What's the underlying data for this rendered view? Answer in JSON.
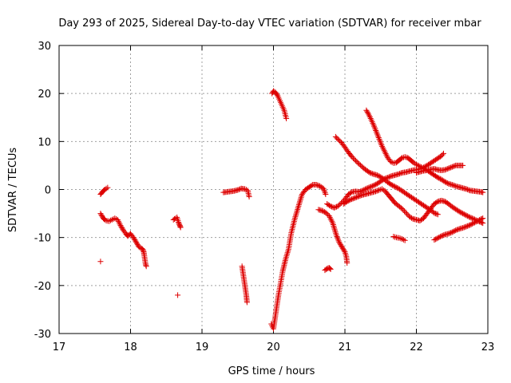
{
  "chart_data": {
    "type": "scatter",
    "title": "Day 293 of 2025, Sidereal Day-to-day VTEC variation (SDTVAR) for receiver mbar",
    "xlabel": "GPS time / hours",
    "ylabel": "SDTVAR / TECUs",
    "xlim": [
      17,
      23
    ],
    "ylim": [
      -30,
      30
    ],
    "xticks": [
      "17",
      "18",
      "19",
      "20",
      "21",
      "22",
      "23"
    ],
    "yticks": [
      "-30",
      "-20",
      "-10",
      "0",
      "10",
      "20",
      "30"
    ],
    "grid": true,
    "marker": "+",
    "color": "#dd0000",
    "series": [
      {
        "name": "seg01",
        "points": [
          [
            17.58,
            -1.0
          ],
          [
            17.6,
            -0.6
          ],
          [
            17.62,
            -0.3
          ],
          [
            17.64,
            0.0
          ],
          [
            17.66,
            0.2
          ],
          [
            17.68,
            0.4
          ]
        ]
      },
      {
        "name": "seg02",
        "points": [
          [
            17.58,
            -5.0
          ],
          [
            17.6,
            -5.5
          ],
          [
            17.62,
            -6.0
          ],
          [
            17.64,
            -6.3
          ],
          [
            17.66,
            -6.5
          ],
          [
            17.7,
            -6.6
          ],
          [
            17.74,
            -6.3
          ],
          [
            17.78,
            -6.0
          ],
          [
            17.82,
            -6.3
          ],
          [
            17.86,
            -7.5
          ],
          [
            17.9,
            -8.5
          ],
          [
            17.94,
            -9.3
          ],
          [
            17.96,
            -9.7
          ],
          [
            18.0,
            -9.2
          ],
          [
            18.04,
            -10.0
          ],
          [
            18.08,
            -11.0
          ],
          [
            18.12,
            -12.0
          ],
          [
            18.16,
            -12.3
          ],
          [
            18.18,
            -12.7
          ],
          [
            18.19,
            -13.5
          ],
          [
            18.2,
            -14.5
          ],
          [
            18.21,
            -15.5
          ],
          [
            18.22,
            -16.0
          ]
        ]
      },
      {
        "name": "seg03",
        "points": [
          [
            17.58,
            -15.0
          ]
        ]
      },
      {
        "name": "seg04",
        "points": [
          [
            18.6,
            -6.3
          ],
          [
            18.63,
            -6.0
          ],
          [
            18.65,
            -5.8
          ],
          [
            18.67,
            -6.8
          ],
          [
            18.69,
            -7.5
          ],
          [
            18.7,
            -7.9
          ]
        ]
      },
      {
        "name": "seg05",
        "points": [
          [
            18.66,
            -22.0
          ]
        ]
      },
      {
        "name": "seg06",
        "points": [
          [
            19.3,
            -0.6
          ],
          [
            19.35,
            -0.5
          ],
          [
            19.4,
            -0.4
          ],
          [
            19.45,
            -0.3
          ],
          [
            19.5,
            -0.1
          ],
          [
            19.55,
            0.2
          ],
          [
            19.6,
            0.1
          ],
          [
            19.64,
            -0.2
          ],
          [
            19.66,
            -1.5
          ]
        ]
      },
      {
        "name": "seg07",
        "points": [
          [
            19.56,
            -16.0
          ],
          [
            19.57,
            -17.0
          ],
          [
            19.58,
            -18.0
          ],
          [
            19.59,
            -19.0
          ],
          [
            19.6,
            -20.0
          ],
          [
            19.61,
            -21.0
          ],
          [
            19.62,
            -22.0
          ],
          [
            19.63,
            -23.5
          ]
        ]
      },
      {
        "name": "seg08",
        "points": [
          [
            19.97,
            -28.0
          ],
          [
            20.0,
            -29.0
          ],
          [
            20.02,
            -27.0
          ],
          [
            20.04,
            -25.0
          ],
          [
            20.07,
            -22.0
          ],
          [
            20.1,
            -19.5
          ],
          [
            20.13,
            -17.0
          ],
          [
            20.17,
            -14.5
          ],
          [
            20.21,
            -12.5
          ],
          [
            20.25,
            -9.0
          ],
          [
            20.3,
            -6.0
          ],
          [
            20.35,
            -3.5
          ],
          [
            20.4,
            -1.0
          ],
          [
            20.45,
            0.0
          ],
          [
            20.5,
            0.5
          ],
          [
            20.55,
            1.0
          ],
          [
            20.6,
            1.0
          ],
          [
            20.65,
            0.7
          ],
          [
            20.7,
            0.2
          ],
          [
            20.73,
            -1.0
          ]
        ]
      },
      {
        "name": "seg09",
        "points": [
          [
            19.98,
            20.0
          ],
          [
            20.0,
            20.5
          ],
          [
            20.03,
            20.2
          ],
          [
            20.06,
            19.5
          ],
          [
            20.09,
            18.5
          ],
          [
            20.12,
            17.5
          ],
          [
            20.15,
            16.5
          ],
          [
            20.18,
            14.8
          ]
        ]
      },
      {
        "name": "seg10",
        "points": [
          [
            20.63,
            -4.2
          ],
          [
            20.68,
            -4.4
          ],
          [
            20.73,
            -4.8
          ],
          [
            20.78,
            -5.5
          ],
          [
            20.83,
            -7.0
          ],
          [
            20.88,
            -9.5
          ],
          [
            20.92,
            -11.0
          ],
          [
            20.96,
            -12.0
          ],
          [
            21.0,
            -13.0
          ],
          [
            21.02,
            -14.0
          ],
          [
            21.03,
            -15.3
          ]
        ]
      },
      {
        "name": "seg11",
        "points": [
          [
            20.72,
            -16.8
          ],
          [
            20.75,
            -16.5
          ],
          [
            20.78,
            -16.3
          ],
          [
            20.8,
            -16.6
          ]
        ]
      },
      {
        "name": "seg12",
        "points": [
          [
            20.75,
            -3.0
          ],
          [
            20.8,
            -3.5
          ],
          [
            20.85,
            -3.8
          ],
          [
            20.9,
            -3.5
          ],
          [
            20.95,
            -2.8
          ],
          [
            21.0,
            -2.0
          ],
          [
            21.05,
            -1.0
          ],
          [
            21.1,
            -0.5
          ],
          [
            21.15,
            -0.4
          ],
          [
            21.2,
            -0.5
          ],
          [
            21.25,
            -0.2
          ],
          [
            21.3,
            0.2
          ],
          [
            21.35,
            0.5
          ],
          [
            21.4,
            0.8
          ],
          [
            21.45,
            1.2
          ],
          [
            21.5,
            1.7
          ],
          [
            21.55,
            2.2
          ],
          [
            21.6,
            2.5
          ],
          [
            21.65,
            2.8
          ],
          [
            21.7,
            3.0
          ],
          [
            21.75,
            3.2
          ],
          [
            21.8,
            3.5
          ],
          [
            21.85,
            3.6
          ],
          [
            21.9,
            3.8
          ],
          [
            21.95,
            4.0
          ],
          [
            22.0,
            4.1
          ],
          [
            22.05,
            4.3
          ],
          [
            22.1,
            4.6
          ],
          [
            22.15,
            5.0
          ],
          [
            22.2,
            5.5
          ],
          [
            22.25,
            6.0
          ],
          [
            22.3,
            6.5
          ],
          [
            22.35,
            7.0
          ],
          [
            22.38,
            7.5
          ]
        ]
      },
      {
        "name": "seg13",
        "points": [
          [
            20.87,
            11.0
          ],
          [
            20.9,
            10.5
          ],
          [
            20.95,
            9.8
          ],
          [
            21.0,
            8.8
          ],
          [
            21.05,
            7.7
          ],
          [
            21.1,
            6.8
          ],
          [
            21.15,
            6.0
          ],
          [
            21.2,
            5.3
          ],
          [
            21.25,
            4.6
          ],
          [
            21.3,
            4.0
          ],
          [
            21.35,
            3.5
          ],
          [
            21.4,
            3.2
          ],
          [
            21.45,
            3.0
          ],
          [
            21.5,
            2.6
          ],
          [
            21.55,
            2.1
          ],
          [
            21.6,
            1.5
          ],
          [
            21.65,
            1.0
          ],
          [
            21.7,
            0.6
          ],
          [
            21.75,
            0.2
          ],
          [
            21.8,
            -0.3
          ],
          [
            21.85,
            -0.8
          ],
          [
            21.9,
            -1.3
          ],
          [
            21.95,
            -1.8
          ],
          [
            22.0,
            -2.3
          ],
          [
            22.05,
            -2.8
          ],
          [
            22.1,
            -3.3
          ],
          [
            22.15,
            -3.8
          ],
          [
            22.2,
            -4.3
          ],
          [
            22.25,
            -4.9
          ],
          [
            22.3,
            -5.2
          ]
        ]
      },
      {
        "name": "seg14",
        "points": [
          [
            20.98,
            -3.0
          ],
          [
            21.03,
            -2.5
          ],
          [
            21.08,
            -2.1
          ],
          [
            21.13,
            -1.8
          ],
          [
            21.18,
            -1.5
          ],
          [
            21.23,
            -1.2
          ],
          [
            21.28,
            -1.0
          ],
          [
            21.33,
            -0.8
          ],
          [
            21.38,
            -0.6
          ],
          [
            21.43,
            -0.4
          ],
          [
            21.48,
            -0.1
          ],
          [
            21.52,
            0.1
          ],
          [
            21.56,
            -0.3
          ],
          [
            21.6,
            -1.0
          ],
          [
            21.65,
            -1.9
          ],
          [
            21.7,
            -2.8
          ],
          [
            21.75,
            -3.4
          ],
          [
            21.8,
            -4.0
          ],
          [
            21.85,
            -4.8
          ],
          [
            21.9,
            -5.6
          ],
          [
            21.95,
            -6.1
          ],
          [
            22.0,
            -6.3
          ],
          [
            22.05,
            -6.5
          ],
          [
            22.1,
            -6.0
          ],
          [
            22.15,
            -5.0
          ],
          [
            22.2,
            -4.0
          ],
          [
            22.25,
            -3.0
          ],
          [
            22.3,
            -2.5
          ],
          [
            22.35,
            -2.3
          ],
          [
            22.4,
            -2.5
          ],
          [
            22.45,
            -3.0
          ],
          [
            22.5,
            -3.6
          ],
          [
            22.55,
            -4.1
          ],
          [
            22.6,
            -4.6
          ],
          [
            22.65,
            -5.0
          ],
          [
            22.7,
            -5.4
          ],
          [
            22.75,
            -5.8
          ],
          [
            22.8,
            -6.1
          ],
          [
            22.85,
            -6.5
          ],
          [
            22.9,
            -6.8
          ],
          [
            22.93,
            -7.0
          ]
        ]
      },
      {
        "name": "seg15",
        "points": [
          [
            21.3,
            16.5
          ],
          [
            21.33,
            15.7
          ],
          [
            21.36,
            14.8
          ],
          [
            21.4,
            13.5
          ],
          [
            21.44,
            12.0
          ],
          [
            21.48,
            10.5
          ],
          [
            21.52,
            9.0
          ],
          [
            21.56,
            7.8
          ],
          [
            21.6,
            6.6
          ],
          [
            21.64,
            5.8
          ],
          [
            21.68,
            5.5
          ],
          [
            21.72,
            5.6
          ],
          [
            21.76,
            6.1
          ],
          [
            21.8,
            6.6
          ],
          [
            21.84,
            6.8
          ],
          [
            21.88,
            6.6
          ],
          [
            21.92,
            6.1
          ],
          [
            21.96,
            5.6
          ],
          [
            22.0,
            5.2
          ],
          [
            22.05,
            4.8
          ],
          [
            22.1,
            4.4
          ],
          [
            22.15,
            4.0
          ],
          [
            22.2,
            3.5
          ],
          [
            22.25,
            3.0
          ],
          [
            22.3,
            2.5
          ],
          [
            22.35,
            2.1
          ],
          [
            22.4,
            1.6
          ],
          [
            22.45,
            1.2
          ],
          [
            22.5,
            1.0
          ],
          [
            22.55,
            0.7
          ],
          [
            22.6,
            0.5
          ],
          [
            22.65,
            0.3
          ],
          [
            22.7,
            0.1
          ],
          [
            22.75,
            -0.2
          ],
          [
            22.8,
            -0.3
          ],
          [
            22.85,
            -0.4
          ],
          [
            22.9,
            -0.5
          ],
          [
            22.93,
            -0.6
          ]
        ]
      },
      {
        "name": "seg16",
        "points": [
          [
            21.68,
            -9.8
          ],
          [
            21.72,
            -10.0
          ],
          [
            21.76,
            -10.1
          ],
          [
            21.8,
            -10.3
          ],
          [
            21.84,
            -10.6
          ]
        ]
      },
      {
        "name": "seg17",
        "points": [
          [
            22.0,
            3.5
          ],
          [
            22.05,
            3.7
          ],
          [
            22.1,
            3.9
          ],
          [
            22.15,
            4.0
          ],
          [
            22.2,
            4.2
          ],
          [
            22.25,
            4.3
          ],
          [
            22.3,
            4.1
          ],
          [
            22.35,
            4.0
          ],
          [
            22.4,
            4.1
          ],
          [
            22.45,
            4.4
          ],
          [
            22.5,
            4.7
          ],
          [
            22.55,
            5.0
          ],
          [
            22.6,
            5.0
          ],
          [
            22.65,
            5.0
          ]
        ]
      },
      {
        "name": "seg18",
        "points": [
          [
            22.25,
            -10.5
          ],
          [
            22.3,
            -10.1
          ],
          [
            22.35,
            -9.7
          ],
          [
            22.4,
            -9.4
          ],
          [
            22.45,
            -9.2
          ],
          [
            22.5,
            -8.9
          ],
          [
            22.55,
            -8.5
          ],
          [
            22.6,
            -8.2
          ],
          [
            22.65,
            -8.0
          ],
          [
            22.7,
            -7.7
          ],
          [
            22.75,
            -7.4
          ],
          [
            22.8,
            -7.0
          ],
          [
            22.85,
            -6.6
          ],
          [
            22.9,
            -6.2
          ],
          [
            22.93,
            -6.0
          ]
        ]
      }
    ]
  }
}
